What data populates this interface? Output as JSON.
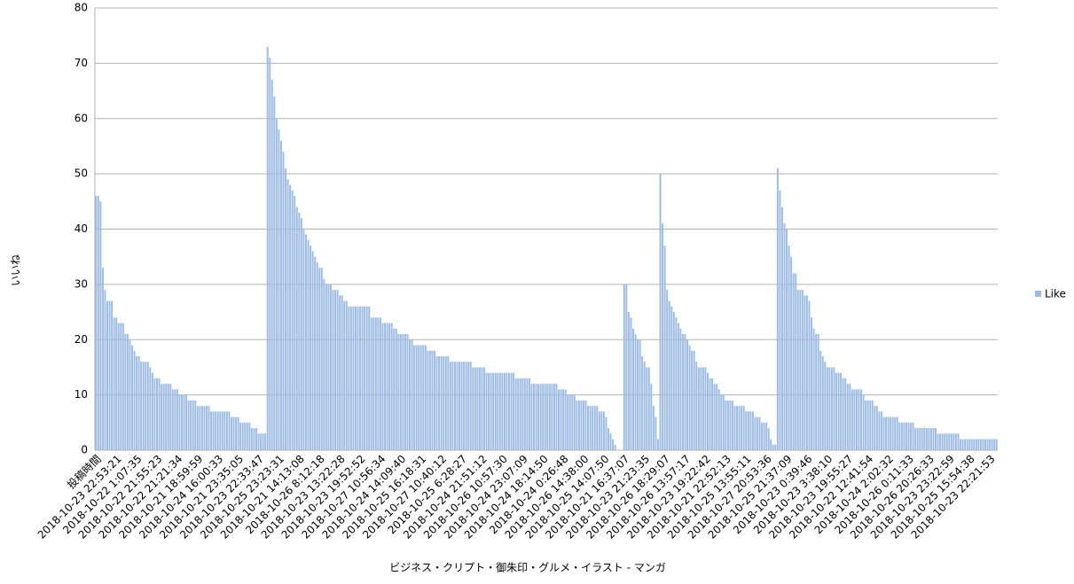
{
  "chart_data": {
    "type": "bar",
    "x_label": "ビジネス・クリプト・御朱印・グルメ・イラスト - マンガ",
    "y_label": "いいね",
    "ylim": [
      0,
      80
    ],
    "yticks": [
      0,
      10,
      20,
      30,
      40,
      50,
      60,
      70,
      80
    ],
    "grid": true,
    "legend": "right",
    "categories": [
      "投稿時間",
      null,
      null,
      null,
      null,
      null,
      null,
      null,
      null,
      "2018-10-23 22:53:21",
      null,
      null,
      null,
      null,
      null,
      null,
      null,
      null,
      "2018-10-22 1:07:35",
      null,
      null,
      null,
      null,
      null,
      null,
      null,
      null,
      "2018-10-22 21:55:23",
      null,
      null,
      null,
      null,
      null,
      null,
      null,
      null,
      "2018-10-22 21:21:34",
      null,
      null,
      null,
      null,
      null,
      null,
      null,
      null,
      "2018-10-21 18:59:59",
      null,
      null,
      null,
      null,
      null,
      null,
      null,
      null,
      "2018-10-24 16:00:33",
      null,
      null,
      null,
      null,
      null,
      null,
      null,
      null,
      "2018-10-21 23:35:05",
      null,
      null,
      null,
      null,
      null,
      null,
      null,
      null,
      "2018-10-23 22:33:47",
      null,
      null,
      null,
      null,
      null,
      null,
      null,
      null,
      "2018-10-25 23:23:31",
      null,
      null,
      null,
      null,
      null,
      null,
      null,
      null,
      "2018-10-21 14:13:08",
      null,
      null,
      null,
      null,
      null,
      null,
      null,
      null,
      "2018-10-26 8:12:18",
      null,
      null,
      null,
      null,
      null,
      null,
      null,
      null,
      "2018-10-23 13:22:28",
      null,
      null,
      null,
      null,
      null,
      null,
      null,
      null,
      "2018-10-23 19:52:52",
      null,
      null,
      null,
      null,
      null,
      null,
      null,
      null,
      "2018-10-27 10:56:34",
      null,
      null,
      null,
      null,
      null,
      null,
      null,
      null,
      "2018-10-24 14:09:40",
      null,
      null,
      null,
      null,
      null,
      null,
      null,
      null,
      "2018-10-25 16:18:31",
      null,
      null,
      null,
      null,
      null,
      null,
      null,
      null,
      "2018-10-27 10:40:12",
      null,
      null,
      null,
      null,
      null,
      null,
      null,
      null,
      "2018-10-25 6:28:27",
      null,
      null,
      null,
      null,
      null,
      null,
      null,
      null,
      "2018-10-24 21:51:12",
      null,
      null,
      null,
      null,
      null,
      null,
      null,
      null,
      "2018-10-26 10:57:30",
      null,
      null,
      null,
      null,
      null,
      null,
      null,
      null,
      "2018-10-24 23:07:09",
      null,
      null,
      null,
      null,
      null,
      null,
      null,
      null,
      "2018-10-24 18:14:50",
      null,
      null,
      null,
      null,
      null,
      null,
      null,
      null,
      "2018-10-24 0:26:48",
      null,
      null,
      null,
      null,
      null,
      null,
      null,
      null,
      "2018-10-26 14:38:00",
      null,
      null,
      null,
      null,
      null,
      null,
      null,
      null,
      "2018-10-25 14:07:50",
      null,
      null,
      null,
      null,
      null,
      null,
      null,
      null,
      "2018-10-21 16:37:07",
      null,
      null,
      null,
      null,
      null,
      null,
      null,
      null,
      "2018-10-23 21:23:35",
      null,
      null,
      null,
      null,
      null,
      null,
      null,
      null,
      "2018-10-26 18:29:07",
      null,
      null,
      null,
      null,
      null,
      null,
      null,
      null,
      "2018-10-26 13:57:17",
      null,
      null,
      null,
      null,
      null,
      null,
      null,
      null,
      "2018-10-23 19:22:42",
      null,
      null,
      null,
      null,
      null,
      null,
      null,
      null,
      "2018-10-21 22:52:13",
      null,
      null,
      null,
      null,
      null,
      null,
      null,
      null,
      "2018-10-25 13:55:11",
      null,
      null,
      null,
      null,
      null,
      null,
      null,
      null,
      "2018-10-27 20:53:36",
      null,
      null,
      null,
      null,
      null,
      null,
      null,
      null,
      "2018-10-25 21:37:09",
      null,
      null,
      null,
      null,
      null,
      null,
      null,
      null,
      "2018-10-23 0:39:46",
      null,
      null,
      null,
      null,
      null,
      null,
      null,
      null,
      "2018-10-23 3:38:10",
      null,
      null,
      null,
      null,
      null,
      null,
      null,
      null,
      "2018-10-23 19:55:27",
      null,
      null,
      null,
      null,
      null,
      null,
      null,
      null,
      "2018-10-22 12:41:54",
      null,
      null,
      null,
      null,
      null,
      null,
      null,
      null,
      "2018-10-24 2:02:32",
      null,
      null,
      null,
      null,
      null,
      null,
      null,
      null,
      "2018-10-26 0:11:33",
      null,
      null,
      null,
      null,
      null,
      null,
      null,
      null,
      "2018-10-26 20:26:33",
      null,
      null,
      null,
      null,
      null,
      null,
      null,
      null,
      "2018-10-23 23:22:59",
      null,
      null,
      null,
      null,
      null,
      null,
      null,
      null,
      "2018-10-25 15:54:38",
      null,
      null,
      null,
      null,
      null,
      null,
      null,
      null,
      "2018-10-23 22:21:53",
      null,
      null,
      null
    ],
    "series": [
      {
        "name": "Like",
        "color": "#9dbbe3",
        "values": [
          46,
          46,
          45,
          33,
          29,
          27,
          27,
          27,
          24,
          24,
          23,
          23,
          23,
          21,
          21,
          20,
          19,
          18,
          17,
          17,
          16,
          16,
          16,
          16,
          15,
          14,
          13,
          13,
          13,
          12,
          12,
          12,
          12,
          12,
          11,
          11,
          11,
          10,
          10,
          10,
          10,
          9,
          9,
          9,
          9,
          8,
          8,
          8,
          8,
          8,
          8,
          7,
          7,
          7,
          7,
          7,
          7,
          7,
          7,
          7,
          6,
          6,
          6,
          6,
          5,
          5,
          5,
          5,
          5,
          4,
          4,
          4,
          3,
          3,
          3,
          3,
          73,
          71,
          67,
          64,
          60,
          58,
          56,
          54,
          51,
          49,
          48,
          47,
          46,
          44,
          43,
          42,
          40,
          39,
          38,
          37,
          36,
          35,
          34,
          33,
          33,
          31,
          30,
          30,
          30,
          29,
          29,
          29,
          28,
          28,
          27,
          27,
          26,
          26,
          26,
          26,
          26,
          26,
          26,
          26,
          26,
          26,
          24,
          24,
          24,
          24,
          24,
          23,
          23,
          23,
          23,
          23,
          22,
          22,
          21,
          21,
          21,
          21,
          21,
          20,
          20,
          19,
          19,
          19,
          19,
          19,
          19,
          18,
          18,
          18,
          18,
          17,
          17,
          17,
          17,
          17,
          17,
          16,
          16,
          16,
          16,
          16,
          16,
          16,
          16,
          16,
          16,
          15,
          15,
          15,
          15,
          15,
          15,
          14,
          14,
          14,
          14,
          14,
          14,
          14,
          14,
          14,
          14,
          14,
          14,
          14,
          13,
          13,
          13,
          13,
          13,
          13,
          13,
          12,
          12,
          12,
          12,
          12,
          12,
          12,
          12,
          12,
          12,
          12,
          12,
          11,
          11,
          11,
          11,
          10,
          10,
          10,
          10,
          9,
          9,
          9,
          9,
          9,
          8,
          8,
          8,
          8,
          8,
          7,
          7,
          7,
          6,
          4,
          3,
          2,
          1,
          0,
          0,
          0,
          30,
          30,
          25,
          24,
          22,
          21,
          20,
          20,
          17,
          16,
          15,
          15,
          12,
          8,
          6,
          2,
          50,
          41,
          37,
          29,
          27,
          26,
          25,
          24,
          23,
          22,
          21,
          21,
          20,
          19,
          18,
          18,
          16,
          15,
          15,
          15,
          15,
          14,
          13,
          13,
          12,
          12,
          11,
          10,
          10,
          9,
          9,
          9,
          9,
          8,
          8,
          8,
          8,
          8,
          7,
          7,
          7,
          7,
          6,
          6,
          6,
          5,
          5,
          5,
          4,
          2,
          1,
          1,
          51,
          47,
          44,
          41,
          40,
          37,
          35,
          32,
          32,
          29,
          29,
          29,
          28,
          28,
          27,
          24,
          22,
          21,
          21,
          18,
          17,
          16,
          15,
          15,
          15,
          15,
          14,
          14,
          14,
          13,
          13,
          12,
          12,
          11,
          11,
          11,
          11,
          11,
          10,
          9,
          9,
          9,
          9,
          8,
          8,
          7,
          7,
          6,
          6,
          6,
          6,
          6,
          6,
          6,
          5,
          5,
          5,
          5,
          5,
          5,
          5,
          4,
          4,
          4,
          4,
          4,
          4,
          4,
          4,
          4,
          4,
          3,
          3,
          3,
          3,
          3,
          3,
          3,
          3,
          3,
          3,
          2,
          2,
          2,
          2,
          2,
          2,
          2,
          2,
          2,
          2,
          2,
          2,
          2,
          2,
          2,
          2,
          2
        ]
      }
    ]
  }
}
